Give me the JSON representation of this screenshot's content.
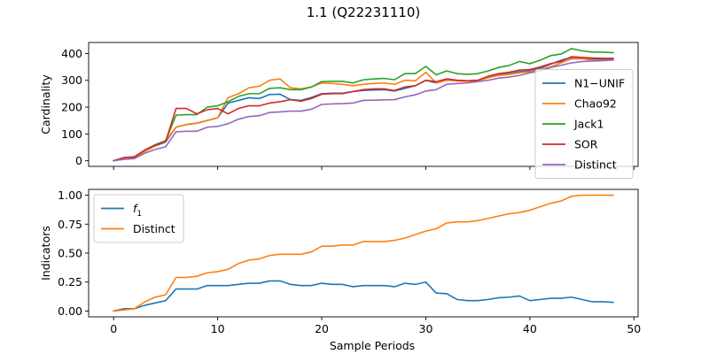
{
  "figure": {
    "title": "1.1 (Q22231110)",
    "background": "#ffffff"
  },
  "chart_data": [
    {
      "type": "line",
      "ylabel": "Cardinality",
      "xlabel": "",
      "xlim": [
        -2.4,
        50.4
      ],
      "ylim": [
        -21,
        441
      ],
      "xticks": [
        0,
        10,
        20,
        30,
        40,
        50
      ],
      "show_xtick_labels": false,
      "yticks": [
        0,
        100,
        200,
        300,
        400
      ],
      "grid": false,
      "legend_position": "right",
      "x": [
        0,
        1,
        2,
        3,
        4,
        5,
        6,
        7,
        8,
        9,
        10,
        11,
        12,
        13,
        14,
        15,
        16,
        17,
        18,
        19,
        20,
        21,
        22,
        23,
        24,
        25,
        26,
        27,
        28,
        29,
        30,
        31,
        32,
        33,
        34,
        35,
        36,
        37,
        38,
        39,
        40,
        41,
        42,
        43,
        44,
        45,
        46,
        47,
        48
      ],
      "series": [
        {
          "name": "N1−UNIF",
          "color": "#1f77b4",
          "values": [
            0,
            10,
            12,
            35,
            55,
            70,
            125,
            135,
            140,
            150,
            160,
            215,
            225,
            235,
            232,
            247,
            248,
            228,
            225,
            236,
            250,
            252,
            252,
            258,
            262,
            264,
            265,
            260,
            270,
            280,
            300,
            290,
            305,
            300,
            298,
            300,
            310,
            320,
            325,
            332,
            335,
            345,
            360,
            375,
            385,
            385,
            380,
            378,
            378
          ]
        },
        {
          "name": "Chao92",
          "color": "#ff7f0e",
          "values": [
            0,
            10,
            12,
            35,
            55,
            75,
            125,
            135,
            140,
            150,
            160,
            235,
            250,
            272,
            278,
            300,
            305,
            272,
            268,
            275,
            290,
            288,
            285,
            280,
            285,
            288,
            290,
            285,
            300,
            298,
            330,
            290,
            300,
            298,
            296,
            298,
            310,
            318,
            322,
            328,
            332,
            340,
            350,
            365,
            380,
            380,
            375,
            375,
            375
          ]
        },
        {
          "name": "Jack1",
          "color": "#2ca02c",
          "values": [
            0,
            12,
            15,
            40,
            60,
            75,
            170,
            172,
            172,
            200,
            205,
            220,
            240,
            250,
            250,
            270,
            272,
            265,
            265,
            275,
            295,
            296,
            296,
            290,
            302,
            305,
            307,
            302,
            325,
            325,
            352,
            320,
            335,
            325,
            322,
            325,
            335,
            348,
            355,
            370,
            362,
            375,
            392,
            398,
            418,
            410,
            405,
            405,
            403
          ]
        },
        {
          "name": "SOR",
          "color": "#d62728",
          "values": [
            0,
            12,
            14,
            40,
            58,
            70,
            195,
            195,
            175,
            190,
            195,
            175,
            195,
            205,
            205,
            215,
            220,
            228,
            222,
            232,
            248,
            250,
            250,
            258,
            265,
            268,
            268,
            262,
            275,
            280,
            300,
            295,
            305,
            300,
            298,
            300,
            315,
            325,
            330,
            338,
            340,
            350,
            362,
            370,
            388,
            385,
            383,
            382,
            382
          ]
        },
        {
          "name": "Distinct",
          "color": "#9467bd",
          "values": [
            0,
            5,
            8,
            28,
            42,
            52,
            108,
            110,
            110,
            125,
            128,
            138,
            155,
            165,
            168,
            180,
            182,
            185,
            185,
            192,
            210,
            212,
            213,
            215,
            225,
            226,
            227,
            228,
            238,
            246,
            260,
            265,
            285,
            288,
            290,
            295,
            300,
            308,
            312,
            318,
            328,
            335,
            348,
            356,
            365,
            370,
            372,
            373,
            376
          ]
        }
      ]
    },
    {
      "type": "line",
      "ylabel": "Indicators",
      "xlabel": "Sample Periods",
      "xlim": [
        -2.4,
        50.4
      ],
      "ylim": [
        -0.05,
        1.05
      ],
      "xticks": [
        0,
        10,
        20,
        30,
        40,
        50
      ],
      "show_xtick_labels": true,
      "yticks": [
        0.0,
        0.25,
        0.5,
        0.75,
        1.0
      ],
      "ytick_labels": [
        "0.00",
        "0.25",
        "0.50",
        "0.75",
        "1.00"
      ],
      "grid": false,
      "legend_position": "top-left",
      "x": [
        0,
        1,
        2,
        3,
        4,
        5,
        6,
        7,
        8,
        9,
        10,
        11,
        12,
        13,
        14,
        15,
        16,
        17,
        18,
        19,
        20,
        21,
        22,
        23,
        24,
        25,
        26,
        27,
        28,
        29,
        30,
        31,
        32,
        33,
        34,
        35,
        36,
        37,
        38,
        39,
        40,
        41,
        42,
        43,
        44,
        45,
        46,
        47,
        48
      ],
      "series": [
        {
          "name": "f",
          "subscript": "1",
          "color": "#1f77b4",
          "values": [
            0,
            0.02,
            0.02,
            0.05,
            0.07,
            0.09,
            0.19,
            0.19,
            0.19,
            0.22,
            0.22,
            0.22,
            0.23,
            0.24,
            0.24,
            0.26,
            0.26,
            0.23,
            0.22,
            0.22,
            0.24,
            0.23,
            0.23,
            0.21,
            0.22,
            0.22,
            0.22,
            0.21,
            0.24,
            0.23,
            0.25,
            0.155,
            0.15,
            0.1,
            0.09,
            0.09,
            0.1,
            0.115,
            0.12,
            0.13,
            0.09,
            0.1,
            0.11,
            0.11,
            0.12,
            0.1,
            0.08,
            0.08,
            0.075
          ]
        },
        {
          "name": "Distinct",
          "color": "#ff7f0e",
          "values": [
            0,
            0.01,
            0.02,
            0.08,
            0.12,
            0.14,
            0.29,
            0.29,
            0.3,
            0.33,
            0.34,
            0.36,
            0.41,
            0.44,
            0.45,
            0.48,
            0.49,
            0.49,
            0.49,
            0.51,
            0.56,
            0.56,
            0.57,
            0.57,
            0.6,
            0.6,
            0.6,
            0.61,
            0.63,
            0.66,
            0.69,
            0.71,
            0.76,
            0.77,
            0.77,
            0.78,
            0.8,
            0.82,
            0.84,
            0.85,
            0.87,
            0.9,
            0.93,
            0.95,
            0.99,
            1.0,
            1.0,
            1.0,
            1.0
          ]
        }
      ]
    }
  ]
}
